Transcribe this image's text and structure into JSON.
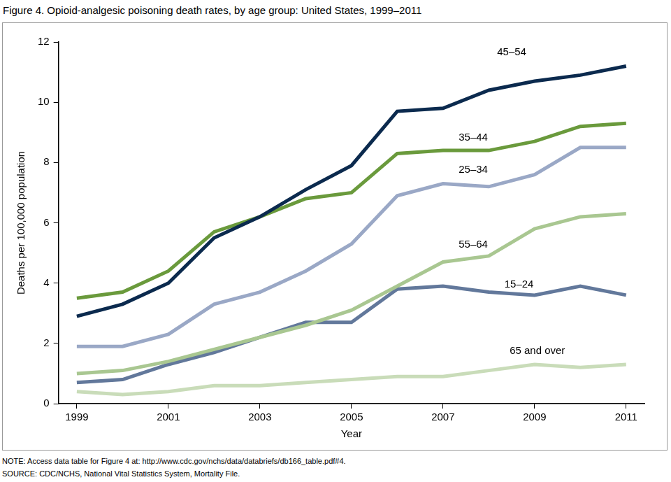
{
  "chart_data": {
    "type": "line",
    "title": "Figure 4. Opioid-analgesic poisoning death rates, by age group: United States, 1999–2011",
    "x_label": "Year",
    "y_label": "Deaths per 100,000 population",
    "note": "NOTE: Access data table for Figure 4 at: http://www.cdc.gov/nchs/data/databriefs/db166_table.pdf#4.",
    "source": "SOURCE: CDC/NCHS, National Vital Statistics System, Mortality File.",
    "x": [
      1999,
      2000,
      2001,
      2002,
      2003,
      2004,
      2005,
      2006,
      2007,
      2008,
      2009,
      2010,
      2011
    ],
    "xlim": [
      1998.6,
      2011.4
    ],
    "xticks": [
      1999,
      2001,
      2003,
      2005,
      2007,
      2009,
      2011
    ],
    "ylim": [
      0,
      12
    ],
    "yticks": [
      0,
      2,
      4,
      6,
      8,
      10,
      12
    ],
    "grid": false,
    "series": [
      {
        "name": "45–54",
        "color": "#0b2a4e",
        "values": [
          2.9,
          3.3,
          4.0,
          5.5,
          6.2,
          7.1,
          7.9,
          9.7,
          9.8,
          10.4,
          10.7,
          10.9,
          11.2
        ]
      },
      {
        "name": "35–44",
        "color": "#6a9a3c",
        "values": [
          3.5,
          3.7,
          4.4,
          5.7,
          6.2,
          6.8,
          7.0,
          8.3,
          8.4,
          8.4,
          8.7,
          9.2,
          9.3
        ]
      },
      {
        "name": "25–34",
        "color": "#9aa8c6",
        "values": [
          1.9,
          1.9,
          2.3,
          3.3,
          3.7,
          4.4,
          5.3,
          6.9,
          7.3,
          7.2,
          7.6,
          8.5,
          8.5
        ]
      },
      {
        "name": "55–64",
        "color": "#a9c791",
        "values": [
          1.0,
          1.1,
          1.4,
          1.8,
          2.2,
          2.6,
          3.1,
          3.9,
          4.7,
          4.9,
          5.8,
          6.2,
          6.3
        ]
      },
      {
        "name": "15–24",
        "color": "#62789b",
        "values": [
          0.7,
          0.8,
          1.3,
          1.7,
          2.2,
          2.7,
          2.7,
          3.8,
          3.9,
          3.7,
          3.6,
          3.9,
          3.6
        ]
      },
      {
        "name": "65 and over",
        "color": "#c9dcb9",
        "values": [
          0.4,
          0.3,
          0.4,
          0.6,
          0.6,
          0.7,
          0.8,
          0.9,
          0.9,
          1.1,
          1.3,
          1.2,
          1.3
        ]
      }
    ]
  }
}
